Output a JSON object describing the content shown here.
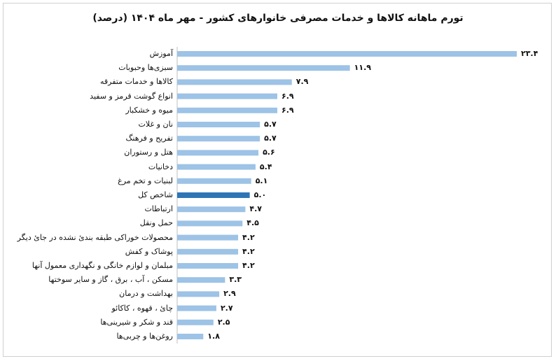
{
  "chart_data": {
    "type": "bar",
    "orientation": "horizontal",
    "title": "تورم ماهانه کالاها و خدمات مصرفی خانوارهای کشور - مهر ماه ۱۴۰۴ (درصد)",
    "categories": [
      "آموزش",
      "سبزی‌ها وحبوبات",
      "کالاها و خدمات متفرقه",
      "انواع گوشت قرمز و سفید",
      "میوه و خشکبار",
      "نان و غلات",
      "تفریح و فرهنگ",
      "هتل و رستوران",
      "دخانیات",
      "لبنیات و تخم مرغ",
      "شاخص کل",
      "ارتباطات",
      "حمل ونقل",
      "محصولات خوراکی طبقه بندیٔ نشده در جایٔ دیگر",
      "پوشاک و کفش",
      "مبلمان و لوازم خانگی و نگهداری معمول آنها",
      "مسکن ، آب ، برق ، گاز و سایر سوختها",
      "بهداشت و درمان",
      "چایٔ ، قهوه ، کاکائو",
      "قند و شکر و شیرینی‌ها",
      "روغن‌ها و چربی‌ها"
    ],
    "values": [
      23.4,
      11.9,
      7.9,
      6.9,
      6.9,
      5.7,
      5.7,
      5.6,
      5.4,
      5.1,
      5.0,
      4.7,
      4.5,
      4.2,
      4.2,
      4.2,
      3.3,
      2.9,
      2.7,
      2.5,
      1.8
    ],
    "value_labels": [
      "۲۳.۴",
      "۱۱.۹",
      "۷.۹",
      "۶.۹",
      "۶.۹",
      "۵.۷",
      "۵.۷",
      "۵.۶",
      "۵.۴",
      "۵.۱",
      "۵.۰",
      "۴.۷",
      "۴.۵",
      "۴.۲",
      "۴.۲",
      "۴.۲",
      "۳.۳",
      "۲.۹",
      "۲.۷",
      "۲.۵",
      "۱.۸"
    ],
    "highlight_category": "شاخص کل",
    "colors": {
      "bar": "#9dc3e6",
      "highlight": "#2e75b6",
      "axis": "#bfbfbf"
    },
    "xlim": [
      0,
      23.4
    ],
    "grid": false,
    "legend": "none"
  }
}
